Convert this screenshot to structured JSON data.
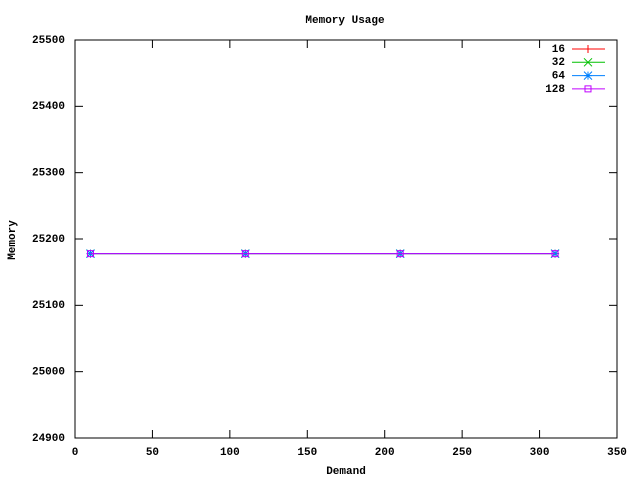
{
  "chart_data": {
    "type": "line",
    "title": "Memory Usage",
    "x_label": "Demand",
    "y_label": "Memory",
    "x": [
      10,
      110,
      210,
      310
    ],
    "series": [
      {
        "name": "16",
        "color": "#ff0000",
        "marker": "plus",
        "values": [
          25178,
          25178,
          25178,
          25178
        ]
      },
      {
        "name": "32",
        "color": "#00c000",
        "marker": "cross",
        "values": [
          25178,
          25178,
          25178,
          25178
        ]
      },
      {
        "name": "64",
        "color": "#0080ff",
        "marker": "star",
        "values": [
          25178,
          25178,
          25178,
          25178
        ]
      },
      {
        "name": "128",
        "color": "#c000ff",
        "marker": "square",
        "values": [
          25178,
          25178,
          25178,
          25178
        ]
      }
    ],
    "xlim": [
      0,
      350
    ],
    "xticks": [
      0,
      50,
      100,
      150,
      200,
      250,
      300,
      350
    ],
    "ylim": [
      24900,
      25500
    ],
    "yticks": [
      24900,
      25000,
      25100,
      25200,
      25300,
      25400,
      25500
    ],
    "legend": "top-right"
  }
}
